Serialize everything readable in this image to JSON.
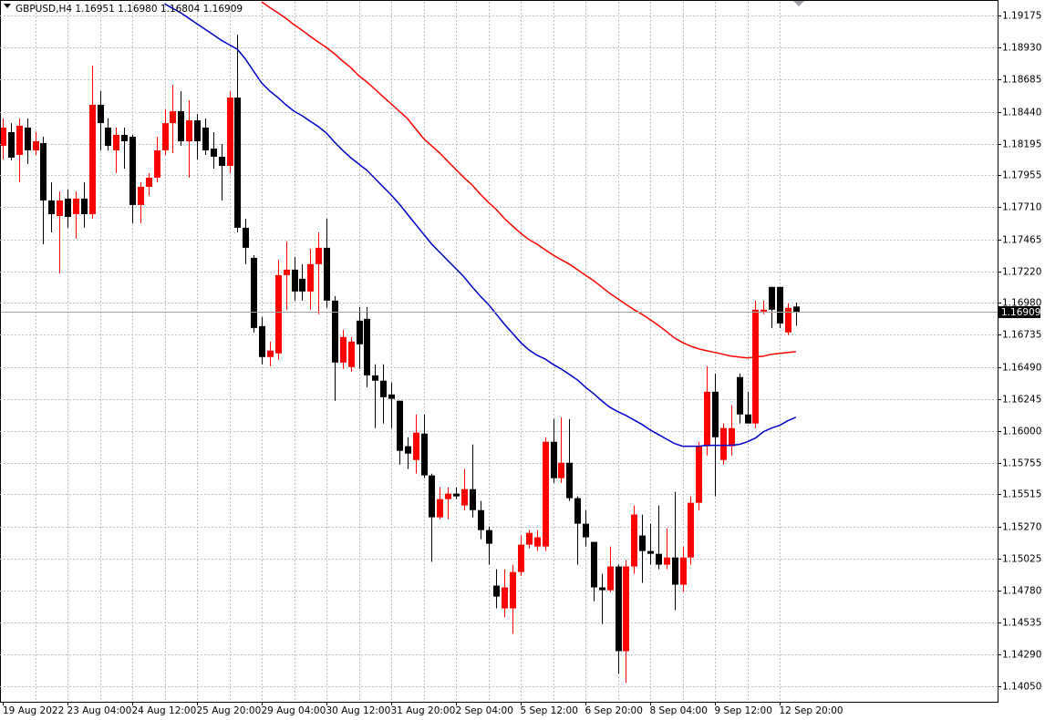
{
  "chart_data": {
    "type": "candlestick",
    "title": "GBPUSD,H4  1.16951 1.16980 1.16804 1.16909",
    "categories": [
      "19 Aug 2022",
      null,
      null,
      null,
      null,
      null,
      null,
      null,
      "23 Aug 04:00",
      null,
      null,
      null,
      null,
      null,
      null,
      null,
      "24 Aug 12:00",
      null,
      null,
      null,
      null,
      null,
      null,
      null,
      "25 Aug 20:00",
      null,
      null,
      null,
      null,
      null,
      null,
      null,
      "29 Aug 04:00",
      null,
      null,
      null,
      null,
      null,
      null,
      null,
      "30 Aug 12:00",
      null,
      null,
      null,
      null,
      null,
      null,
      null,
      "31 Aug 20:00",
      null,
      null,
      null,
      null,
      null,
      null,
      null,
      "2 Sep 04:00",
      null,
      null,
      null,
      null,
      null,
      null,
      null,
      "5 Sep 12:00",
      null,
      null,
      null,
      null,
      null,
      null,
      null,
      "6 Sep 20:00",
      null,
      null,
      null,
      null,
      null,
      null,
      null,
      "8 Sep 04:00",
      null,
      null,
      null,
      null,
      null,
      null,
      null,
      "9 Sep 12:00",
      null,
      null,
      null,
      null,
      null,
      null,
      null,
      "12 Sep 20:00",
      null,
      null
    ],
    "open": [
      1.18179,
      1.18284,
      1.1811,
      1.18319,
      1.18145,
      1.182,
      1.17762,
      1.17643,
      1.17776,
      1.17657,
      1.17776,
      1.17657,
      1.18493,
      1.18319,
      1.18145,
      1.18263,
      1.18249,
      1.17727,
      1.17866,
      1.17936,
      1.18145,
      1.18353,
      1.18444,
      1.18214,
      1.18374,
      1.18319,
      1.18158,
      1.18096,
      1.18026,
      1.18548,
      1.17553,
      1.17323,
      1.16801,
      1.16565,
      1.16593,
      1.17191,
      1.17233,
      1.17163,
      1.17066,
      1.17275,
      1.174,
      1.16996,
      1.16523,
      1.16488,
      1.16843,
      1.16857,
      1.16425,
      1.16384,
      1.16279,
      1.16231,
      1.15883,
      1.15778,
      1.1598,
      1.1566,
      1.1534,
      1.15479,
      1.15521,
      1.1543,
      1.15555,
      1.15395,
      1.15242,
      1.14818,
      1.14644,
      1.14644,
      1.14922,
      1.15131,
      1.15117,
      1.15117,
      1.15917,
      1.15639,
      1.15757,
      1.15486,
      1.15291,
      1.15152,
      1.14804,
      1.14783,
      1.14964,
      1.14317,
      1.14964,
      1.15201,
      1.15082,
      1.15061,
      1.14978,
      1.15033,
      1.14825,
      1.15033,
      1.15451,
      1.15883,
      1.163,
      1.15778,
      1.15883,
      1.16412,
      1.16126,
      1.16057,
      1.16913,
      1.17101,
      1.17101,
      1.16753,
      1.16951
    ],
    "high": [
      1.18388,
      1.18353,
      1.18388,
      1.18388,
      1.18284,
      1.18249,
      1.17901,
      1.17831,
      1.17845,
      1.17831,
      1.17901,
      1.18792,
      1.18597,
      1.18388,
      1.18319,
      1.18319,
      1.18263,
      1.17901,
      1.17971,
      1.18249,
      1.18458,
      1.18646,
      1.18597,
      1.18527,
      1.18423,
      1.18388,
      1.18284,
      1.18193,
      1.18597,
      1.19029,
      1.17623,
      1.17344,
      1.16871,
      1.16683,
      1.17309,
      1.17449,
      1.1733,
      1.17275,
      1.17393,
      1.17518,
      1.17623,
      1.17031,
      1.16773,
      1.16718,
      1.16948,
      1.16948,
      1.16509,
      1.16509,
      1.1637,
      1.16231,
      1.15952,
      1.16126,
      1.16126,
      1.15674,
      1.15569,
      1.15569,
      1.15569,
      1.15709,
      1.15897,
      1.15465,
      1.1527,
      1.14943,
      1.14943,
      1.14978,
      1.15201,
      1.15242,
      1.15242,
      1.15952,
      1.16091,
      1.16105,
      1.16091,
      1.155,
      1.15395,
      1.15152,
      1.14908,
      1.15117,
      1.14978,
      1.15013,
      1.1543,
      1.15361,
      1.15291,
      1.1543,
      1.15256,
      1.15535,
      1.15117,
      1.155,
      1.15917,
      1.16495,
      1.16439,
      1.16057,
      1.16196,
      1.16439,
      1.163,
      1.16996,
      1.16996,
      1.17101,
      1.17101,
      1.16975,
      1.1698
    ],
    "low": [
      1.18075,
      1.18068,
      1.17901,
      1.1804,
      1.1811,
      1.17428,
      1.17518,
      1.17205,
      1.17553,
      1.1747,
      1.17553,
      1.17623,
      1.18145,
      1.18145,
      1.17971,
      1.18005,
      1.17588,
      1.17588,
      1.17797,
      1.17901,
      1.1811,
      1.18124,
      1.18179,
      1.17936,
      1.18075,
      1.1811,
      1.18005,
      1.17762,
      1.17971,
      1.17518,
      1.17275,
      1.16753,
      1.16509,
      1.16495,
      1.16544,
      1.16927,
      1.16996,
      1.16996,
      1.16927,
      1.16892,
      1.16941,
      1.16231,
      1.16474,
      1.16453,
      1.16474,
      1.16335,
      1.16022,
      1.16057,
      1.16022,
      1.15743,
      1.15709,
      1.15674,
      1.15639,
      1.14999,
      1.15326,
      1.15326,
      1.15479,
      1.15395,
      1.1534,
      1.15173,
      1.14978,
      1.14644,
      1.14574,
      1.14449,
      1.14894,
      1.15103,
      1.15082,
      1.15082,
      1.15604,
      1.15604,
      1.15465,
      1.14978,
      1.15117,
      1.14699,
      1.14525,
      1.14769,
      1.14143,
      1.14073,
      1.14908,
      1.14839,
      1.14978,
      1.14943,
      1.14943,
      1.1463,
      1.14769,
      1.14978,
      1.15395,
      1.15813,
      1.155,
      1.15743,
      1.15813,
      1.16057,
      1.16057,
      1.16022,
      1.16892,
      1.16787,
      1.16787,
      1.16732,
      1.16804
    ],
    "close": [
      1.18319,
      1.18089,
      1.18333,
      1.18145,
      1.18214,
      1.17762,
      1.17657,
      1.17762,
      1.17636,
      1.17776,
      1.17657,
      1.18493,
      1.18353,
      1.18179,
      1.18263,
      1.18214,
      1.17727,
      1.17866,
      1.17936,
      1.18145,
      1.18353,
      1.18444,
      1.18214,
      1.18374,
      1.18214,
      1.18145,
      1.18096,
      1.18026,
      1.18548,
      1.17553,
      1.174,
      1.16787,
      1.16565,
      1.16614,
      1.17191,
      1.17233,
      1.17066,
      1.17066,
      1.17275,
      1.174,
      1.16996,
      1.16523,
      1.16718,
      1.16683,
      1.16662,
      1.16425,
      1.16384,
      1.16258,
      1.16245,
      1.15848,
      1.15827,
      1.15987,
      1.1566,
      1.1534,
      1.15479,
      1.15521,
      1.155,
      1.15555,
      1.15395,
      1.15242,
      1.15138,
      1.14734,
      1.14804,
      1.14922,
      1.15131,
      1.15221,
      1.15187,
      1.15917,
      1.15639,
      1.15757,
      1.15486,
      1.15291,
      1.15187,
      1.14804,
      1.14783,
      1.14964,
      1.14317,
      1.14964,
      1.15361,
      1.15082,
      1.15061,
      1.14978,
      1.15033,
      1.14825,
      1.15033,
      1.15451,
      1.15883,
      1.163,
      1.15952,
      1.16022,
      1.16022,
      1.16126,
      1.16057,
      1.16927,
      1.16927,
      1.16927,
      1.16822,
      1.16941,
      1.16909
    ],
    "up_color": "#ff0000",
    "down_color": "#000000",
    "lines": [
      {
        "color": "#0000c8",
        "values": [
          null,
          null,
          null,
          null,
          null,
          null,
          null,
          null,
          null,
          null,
          null,
          null,
          null,
          null,
          null,
          null,
          null,
          null,
          null,
          null,
          1.19265,
          1.1923,
          1.19196,
          1.19154,
          1.19112,
          1.1907,
          1.19029,
          1.18987,
          1.18952,
          1.18917,
          1.18841,
          1.1875,
          1.1866,
          1.18597,
          1.18548,
          1.18493,
          1.18444,
          1.18409,
          1.18367,
          1.18326,
          1.18277,
          1.18207,
          1.18145,
          1.18089,
          1.1804,
          1.17992,
          1.17929,
          1.17866,
          1.17804,
          1.17734,
          1.17657,
          1.17581,
          1.17504,
          1.17428,
          1.17365,
          1.17302,
          1.1724,
          1.17177,
          1.17101,
          1.17031,
          1.16968,
          1.16892,
          1.16815,
          1.16746,
          1.16676,
          1.1662,
          1.16579,
          1.16551,
          1.16509,
          1.16474,
          1.16432,
          1.16391,
          1.16335,
          1.16286,
          1.16231,
          1.16182,
          1.16147,
          1.16119,
          1.16084,
          1.1605,
          1.16008,
          1.15973,
          1.15938,
          1.15904,
          1.15883,
          1.15883,
          1.15883,
          1.1589,
          1.1589,
          1.1589,
          1.1589,
          1.15897,
          1.15917,
          1.15945,
          1.15994,
          1.16022,
          1.16043,
          1.16078,
          1.16105
        ]
      },
      {
        "color": "#ff0000",
        "values": [
          null,
          null,
          null,
          null,
          null,
          null,
          null,
          null,
          null,
          null,
          null,
          null,
          null,
          null,
          null,
          null,
          null,
          null,
          null,
          null,
          null,
          null,
          null,
          null,
          null,
          null,
          null,
          null,
          null,
          null,
          null,
          null,
          1.19279,
          1.19237,
          1.19196,
          1.19154,
          1.19105,
          1.19063,
          1.19015,
          1.18973,
          1.18931,
          1.18882,
          1.18827,
          1.18778,
          1.18715,
          1.18667,
          1.18611,
          1.18555,
          1.185,
          1.18444,
          1.18388,
          1.18312,
          1.18235,
          1.18179,
          1.18124,
          1.18061,
          1.17998,
          1.17936,
          1.1788,
          1.17811,
          1.17748,
          1.17692,
          1.17623,
          1.17567,
          1.17511,
          1.17463,
          1.17428,
          1.17386,
          1.17344,
          1.17309,
          1.17275,
          1.17233,
          1.17191,
          1.17149,
          1.17101,
          1.17052,
          1.1701,
          1.16968,
          1.16927,
          1.16892,
          1.1685,
          1.16808,
          1.1676,
          1.16711,
          1.16676,
          1.16648,
          1.16627,
          1.16613,
          1.166,
          1.16586,
          1.16572,
          1.16565,
          1.16558,
          1.16565,
          1.16572,
          1.16586,
          1.16593,
          1.166,
          1.16606
        ]
      }
    ],
    "ylim": [
      1.1393,
      1.1928
    ],
    "yticks": [
      1.19175,
      {
        "value": 1.1893,
        "label": "1.18930"
      },
      1.18685,
      {
        "value": 1.1844,
        "label": "1.18440"
      },
      1.18195,
      1.17955,
      {
        "value": 1.1771,
        "label": "1.17710"
      },
      1.17465,
      {
        "value": 1.1722,
        "label": "1.17220"
      },
      {
        "value": 1.1698,
        "label": "1.16980"
      },
      1.16735,
      {
        "value": 1.1649,
        "label": "1.16490"
      },
      1.16245,
      {
        "value": 1.16,
        "label": "1.16000"
      },
      1.15755,
      1.15515,
      {
        "value": 1.1527,
        "label": "1.15270"
      },
      1.15025,
      {
        "value": 1.1478,
        "label": "1.14780"
      },
      1.14535,
      {
        "value": 1.1429,
        "label": "1.14290"
      },
      {
        "value": 1.1405,
        "label": "1.14050"
      }
    ],
    "grid": true,
    "price_line": true
  }
}
